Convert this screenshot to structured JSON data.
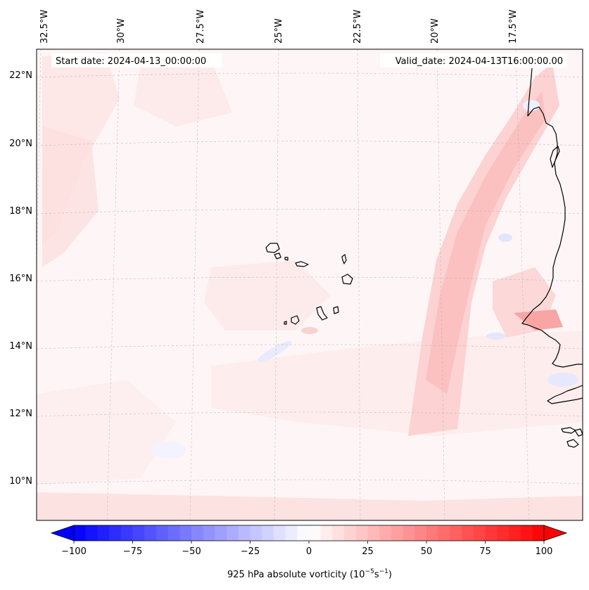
{
  "map": {
    "start_date_label": "Start date: 2024-04-13_00:00:00",
    "valid_date_label": "Valid_date: 2024-04-13T16:00:00.00",
    "lon_labels": [
      "32.5°W",
      "30°W",
      "27.5°W",
      "25°W",
      "22.5°W",
      "20°W",
      "17.5°W"
    ],
    "lat_labels": [
      "22°N",
      "20°N",
      "18°N",
      "16°N",
      "14°N",
      "12°N",
      "10°N"
    ]
  },
  "colorbar": {
    "label_text": "925 hPa absolute vorticity (10",
    "exp1": "−5",
    "label_mid": "s",
    "exp2": "−1",
    "label_end": ")",
    "ticks": [
      {
        "value": -100,
        "label": "−100"
      },
      {
        "value": -75,
        "label": "−75"
      },
      {
        "value": -50,
        "label": "−50"
      },
      {
        "value": -25,
        "label": "−25"
      },
      {
        "value": 0,
        "label": "0"
      },
      {
        "value": 25,
        "label": "25"
      },
      {
        "value": 50,
        "label": "50"
      },
      {
        "value": 75,
        "label": "75"
      },
      {
        "value": 100,
        "label": "100"
      }
    ],
    "min": -100,
    "max": 100,
    "step": 5,
    "neg_color": "#0000ff",
    "pos_color": "#ff0000"
  }
}
